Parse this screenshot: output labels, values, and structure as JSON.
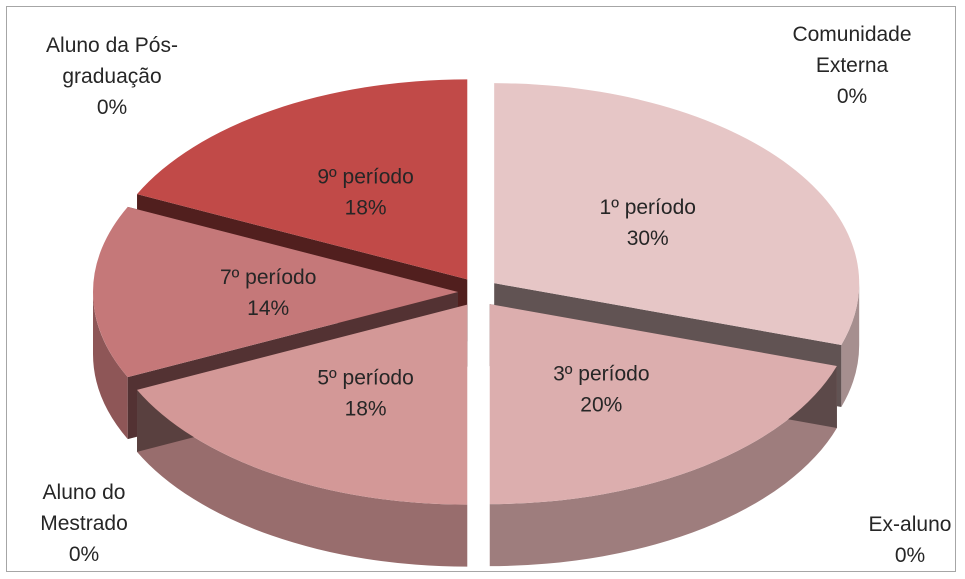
{
  "chart_data": {
    "type": "pie",
    "title": "",
    "label_position": "inside slices; zero-value categories outside",
    "slices": [
      {
        "label": "1º período",
        "value": 30,
        "display": "30%",
        "color": "#e6c6c6"
      },
      {
        "label": "3º período",
        "value": 20,
        "display": "20%",
        "color": "#dcaeae"
      },
      {
        "label": "5º período",
        "value": 18,
        "display": "18%",
        "color": "#d39897"
      },
      {
        "label": "7º período",
        "value": 14,
        "display": "14%",
        "color": "#c57879"
      },
      {
        "label": "9º período",
        "value": 18,
        "display": "18%",
        "color": "#c14a48"
      },
      {
        "label": "Aluno da Pós-graduação",
        "lines": [
          "Aluno da Pós-",
          "graduação"
        ],
        "value": 0,
        "display": "0%"
      },
      {
        "label": "Aluno do Mestrado",
        "lines": [
          "Aluno do",
          "Mestrado"
        ],
        "value": 0,
        "display": "0%"
      },
      {
        "label": "Ex-aluno",
        "lines": [
          "Ex-aluno"
        ],
        "value": 0,
        "display": "0%"
      },
      {
        "label": "Comunidade Externa",
        "lines": [
          "Comunidade",
          "Externa"
        ],
        "value": 0,
        "display": "0%"
      }
    ]
  }
}
